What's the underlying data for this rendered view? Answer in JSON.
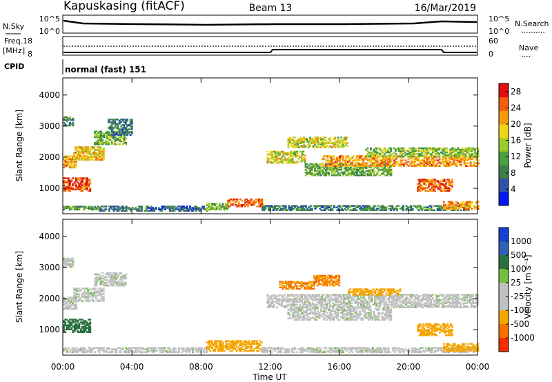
{
  "header": {
    "station": "Kapuskasing (fitACF)",
    "beam": "Beam 13",
    "date": "16/Mar/2019"
  },
  "top_panels": {
    "nsky_label": "N.Sky",
    "nsky_ticks": [
      "10^5",
      "10^0"
    ],
    "nsearch_label": "N.Search",
    "nsearch_ticks": [
      "10^5",
      "10^0"
    ],
    "freq_label_1": "Freq.",
    "freq_label_2": "[MHz]",
    "freq_ticks": [
      "18",
      "8"
    ],
    "nave_label": "Nave",
    "nave_ticks": [
      "60",
      "0"
    ],
    "cpid_label": "CPID",
    "cpid_text": "normal (fast) 151"
  },
  "colors": {
    "power_scale": [
      "#0018f0",
      "#2e52a8",
      "#3f7d4c",
      "#4aa040",
      "#9ccc2a",
      "#f0d418",
      "#f59a10",
      "#f06010",
      "#e01010"
    ],
    "velocity_scale": [
      "#1840d0",
      "#3060b8",
      "#2a7040",
      "#70c040",
      "#c0c0c0",
      "#c0c0c0",
      "#f5a500",
      "#f57000",
      "#f03000"
    ]
  },
  "chart_data": [
    {
      "type": "heatmap",
      "title": "",
      "xlabel": "",
      "ylabel": "Slant Range [km]",
      "xlim": [
        "00:00",
        "24:00"
      ],
      "ylim": [
        180,
        4550
      ],
      "x_ticks": [
        "00:00",
        "04:00",
        "08:00",
        "12:00",
        "16:00",
        "20:00",
        "00:00"
      ],
      "y_ticks": [
        "1000",
        "2000",
        "3000",
        "4000"
      ],
      "colorbar": {
        "label": "Power [dB]",
        "ticks": [
          "4",
          "8",
          "12",
          "16",
          "20",
          "24",
          "28"
        ],
        "range": [
          0,
          30
        ]
      },
      "regions": [
        {
          "t0": 0.0,
          "t1": 2.0,
          "r0": 300,
          "r1": 420,
          "value": 11
        },
        {
          "t0": 2.0,
          "t1": 8.3,
          "r0": 260,
          "r1": 420,
          "value": 7
        },
        {
          "t0": 8.3,
          "t1": 9.5,
          "r0": 300,
          "r1": 520,
          "value": 12
        },
        {
          "t0": 9.5,
          "t1": 11.5,
          "r0": 400,
          "r1": 640,
          "value": 25
        },
        {
          "t0": 11.5,
          "t1": 16.5,
          "r0": 280,
          "r1": 420,
          "value": 8
        },
        {
          "t0": 16.5,
          "t1": 23.5,
          "r0": 280,
          "r1": 420,
          "value": 9
        },
        {
          "t0": 22.0,
          "t1": 24.0,
          "r0": 320,
          "r1": 560,
          "value": 22
        },
        {
          "t0": 0.0,
          "t1": 1.6,
          "r0": 900,
          "r1": 1350,
          "value": 26
        },
        {
          "t0": 0.0,
          "t1": 0.8,
          "r0": 1650,
          "r1": 2050,
          "value": 21
        },
        {
          "t0": 0.6,
          "t1": 2.4,
          "r0": 1900,
          "r1": 2350,
          "value": 19
        },
        {
          "t0": 1.8,
          "t1": 3.6,
          "r0": 2400,
          "r1": 2850,
          "value": 13
        },
        {
          "t0": 2.6,
          "t1": 4.0,
          "r0": 2700,
          "r1": 3200,
          "value": 8
        },
        {
          "t0": 0.0,
          "t1": 0.6,
          "r0": 3000,
          "r1": 3300,
          "value": 10
        },
        {
          "t0": 11.8,
          "t1": 14.0,
          "r0": 1800,
          "r1": 2200,
          "value": 17
        },
        {
          "t0": 13.0,
          "t1": 16.5,
          "r0": 2300,
          "r1": 2650,
          "value": 17
        },
        {
          "t0": 14.0,
          "t1": 19.0,
          "r0": 1400,
          "r1": 1800,
          "value": 12
        },
        {
          "t0": 15.0,
          "t1": 24.0,
          "r0": 1700,
          "r1": 2050,
          "value": 22
        },
        {
          "t0": 17.5,
          "t1": 24.0,
          "r0": 2000,
          "r1": 2300,
          "value": 14
        },
        {
          "t0": 20.5,
          "t1": 22.5,
          "r0": 900,
          "r1": 1300,
          "value": 24
        }
      ]
    },
    {
      "type": "heatmap",
      "title": "",
      "xlabel": "Time UT",
      "ylabel": "Slant Range [km]",
      "xlim": [
        "00:00",
        "24:00"
      ],
      "ylim": [
        180,
        4550
      ],
      "x_ticks": [
        "00:00",
        "04:00",
        "08:00",
        "12:00",
        "16:00",
        "20:00",
        "00:00"
      ],
      "y_ticks": [
        "1000",
        "2000",
        "3000",
        "4000"
      ],
      "colorbar": {
        "label": "Velocity [m s⁻¹]",
        "ticks": [
          "1000",
          "500",
          "100",
          "25",
          "-25",
          "-100",
          "-500",
          "-1000"
        ]
      },
      "regions": [
        {
          "t0": 0.0,
          "t1": 1.6,
          "r0": 900,
          "r1": 1350,
          "value": 100
        },
        {
          "t0": 0.0,
          "t1": 0.8,
          "r0": 1650,
          "r1": 2050,
          "value": 0
        },
        {
          "t0": 0.6,
          "t1": 2.4,
          "r0": 1900,
          "r1": 2350,
          "value": 0
        },
        {
          "t0": 1.8,
          "t1": 3.6,
          "r0": 2400,
          "r1": 2850,
          "value": 0
        },
        {
          "t0": 0.0,
          "t1": 0.6,
          "r0": 3000,
          "r1": 3300,
          "value": 0
        },
        {
          "t0": 0.0,
          "t1": 8.3,
          "r0": 260,
          "r1": 420,
          "value": 0
        },
        {
          "t0": 8.3,
          "t1": 11.5,
          "r0": 300,
          "r1": 640,
          "value": -150
        },
        {
          "t0": 11.5,
          "t1": 24.0,
          "r0": 260,
          "r1": 420,
          "value": 0
        },
        {
          "t0": 22.0,
          "t1": 24.0,
          "r0": 300,
          "r1": 560,
          "value": -150
        },
        {
          "t0": 11.8,
          "t1": 24.0,
          "r0": 1700,
          "r1": 2150,
          "value": 0
        },
        {
          "t0": 13.0,
          "t1": 19.0,
          "r0": 1300,
          "r1": 1700,
          "value": 0
        },
        {
          "t0": 12.5,
          "t1": 14.5,
          "r0": 2300,
          "r1": 2550,
          "value": -300
        },
        {
          "t0": 14.5,
          "t1": 16.0,
          "r0": 2400,
          "r1": 2750,
          "value": -300
        },
        {
          "t0": 16.5,
          "t1": 19.5,
          "r0": 2100,
          "r1": 2300,
          "value": -200
        },
        {
          "t0": 20.5,
          "t1": 22.5,
          "r0": 800,
          "r1": 1200,
          "value": -150
        }
      ]
    }
  ]
}
